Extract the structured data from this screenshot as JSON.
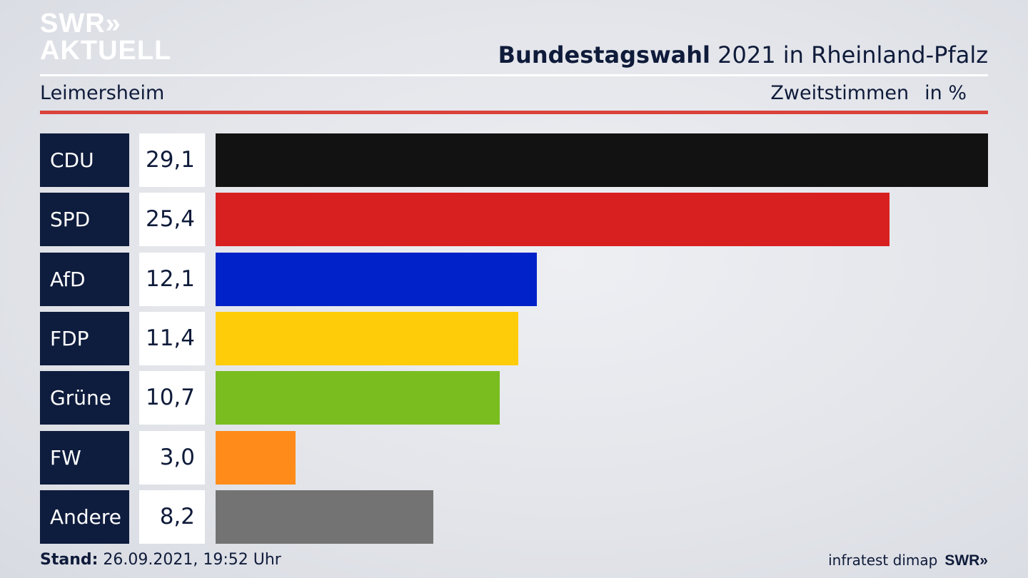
{
  "logo": {
    "line1": "SWR»",
    "line2": "AKTUELL"
  },
  "header": {
    "title_bold": "Bundestagswahl",
    "title_rest": " 2021 in Rheinland-Pfalz",
    "region": "Leimersheim",
    "metric": "Zweitstimmen",
    "unit": "in %"
  },
  "chart_data": {
    "type": "bar",
    "categories": [
      "CDU",
      "SPD",
      "AfD",
      "FDP",
      "Grüne",
      "FW",
      "Andere"
    ],
    "values": [
      29.1,
      25.4,
      12.1,
      11.4,
      10.7,
      3.0,
      8.2
    ],
    "value_labels": [
      "29,1",
      "25,4",
      "12,1",
      "11,4",
      "10,7",
      "3,0",
      "8,2"
    ],
    "colors": [
      "#121212",
      "#d82020",
      "#0022c8",
      "#ffcc0a",
      "#79bd1f",
      "#ff8c1a",
      "#737373"
    ],
    "orientation": "horizontal",
    "xlim": [
      0,
      29.1
    ]
  },
  "footer": {
    "stand_label": "Stand:",
    "stand_value": " 26.09.2021, 19:52 Uhr",
    "source": "infratest dimap",
    "brand": "SWR»"
  }
}
